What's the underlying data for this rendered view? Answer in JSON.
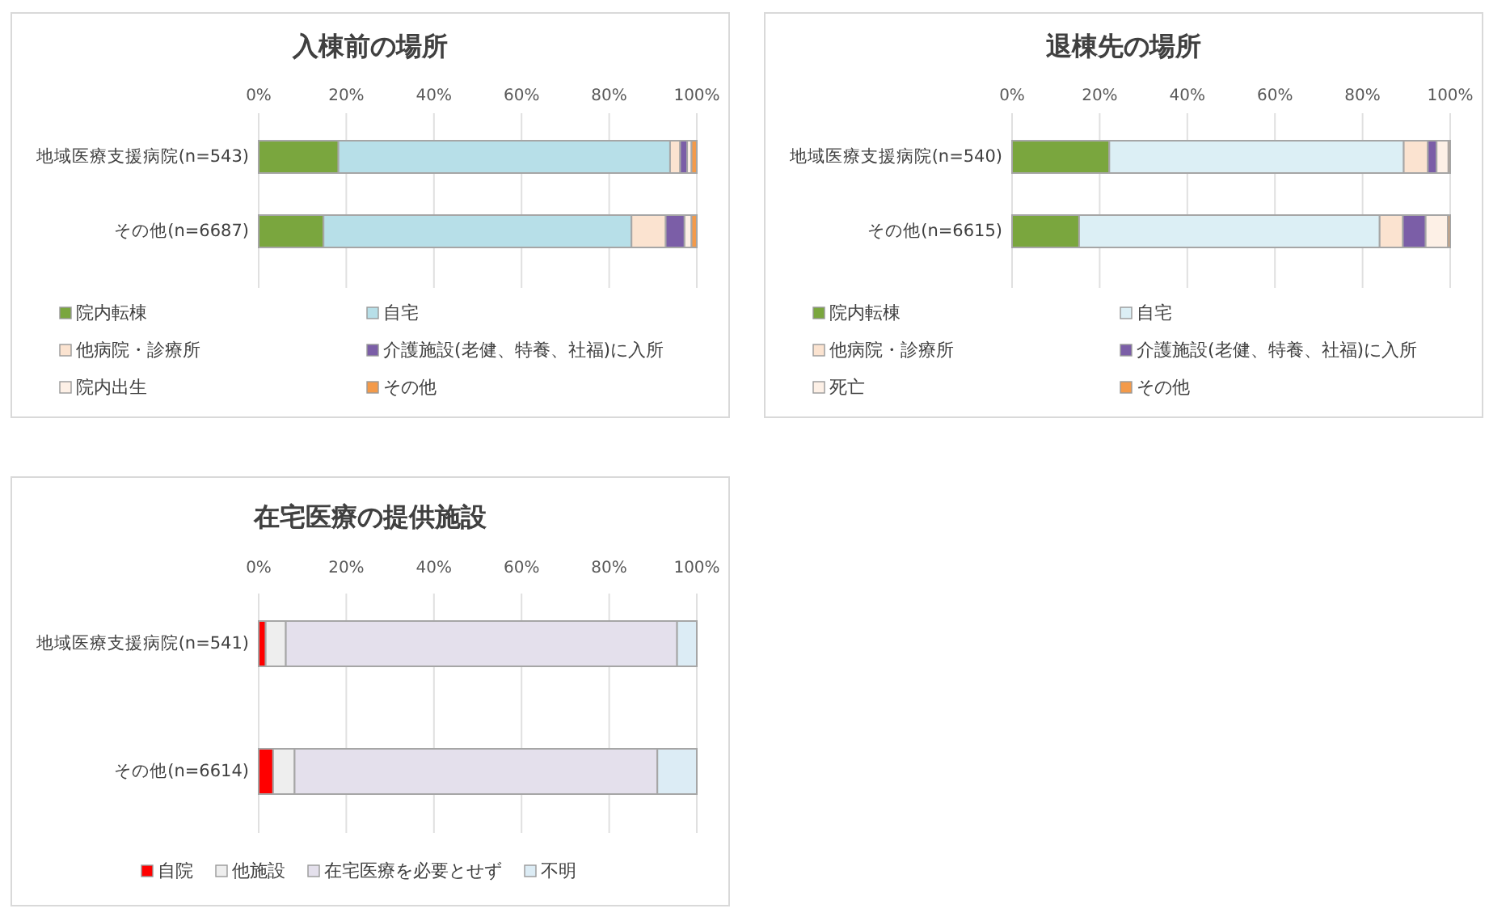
{
  "chart_data": [
    {
      "type": "bar",
      "orientation": "horizontal",
      "stacked": true,
      "title": "入棟前の場所",
      "categories": [
        "地域医療支援病院(n=543)",
        "その他(n=6687)"
      ],
      "xlim": [
        0,
        100
      ],
      "xticks": [
        {
          "value": 0,
          "label": "0%"
        },
        {
          "value": 20,
          "label": "20%"
        },
        {
          "value": 40,
          "label": "40%"
        },
        {
          "value": 60,
          "label": "60%"
        },
        {
          "value": 80,
          "label": "80%"
        },
        {
          "value": 100,
          "label": "100%"
        }
      ],
      "grid": "x",
      "legend": "bottom",
      "series": [
        {
          "name": "院内転棟",
          "color": "#7aa63e",
          "values": [
            18.2,
            14.8
          ]
        },
        {
          "name": "自宅",
          "color": "#b7dfe8",
          "values": [
            75.7,
            70.3
          ]
        },
        {
          "name": "他病院・診療所",
          "color": "#fbe3d0",
          "values": [
            2.3,
            7.8
          ]
        },
        {
          "name": "介護施設(老健、特養、社福)に入所",
          "color": "#7b5ea7",
          "values": [
            1.6,
            4.3
          ]
        },
        {
          "name": "院内出生",
          "color": "#fdf0e6",
          "values": [
            1.0,
            1.6
          ]
        },
        {
          "name": "その他",
          "color": "#f39a4a",
          "values": [
            1.2,
            1.2
          ]
        }
      ]
    },
    {
      "type": "bar",
      "orientation": "horizontal",
      "stacked": true,
      "title": "退棟先の場所",
      "categories": [
        "地域医療支援病院(n=540)",
        "その他(n=6615)"
      ],
      "xlim": [
        0,
        100
      ],
      "xticks": [
        {
          "value": 0,
          "label": "0%"
        },
        {
          "value": 20,
          "label": "20%"
        },
        {
          "value": 40,
          "label": "40%"
        },
        {
          "value": 60,
          "label": "60%"
        },
        {
          "value": 80,
          "label": "80%"
        },
        {
          "value": 100,
          "label": "100%"
        }
      ],
      "grid": "x",
      "legend": "bottom",
      "series": [
        {
          "name": "院内転棟",
          "color": "#7aa63e",
          "values": [
            22.2,
            15.3
          ]
        },
        {
          "name": "自宅",
          "color": "#dceff5",
          "values": [
            67.2,
            68.6
          ]
        },
        {
          "name": "他病院・診療所",
          "color": "#fbe3d0",
          "values": [
            5.5,
            5.3
          ]
        },
        {
          "name": "介護施設(老健、特養、社福)に入所",
          "color": "#7b5ea7",
          "values": [
            2.0,
            5.2
          ]
        },
        {
          "name": "死亡",
          "color": "#fdf0e6",
          "values": [
            2.7,
            5.1
          ]
        },
        {
          "name": "その他",
          "color": "#f39a4a",
          "values": [
            0.4,
            0.5
          ]
        }
      ]
    },
    {
      "type": "bar",
      "orientation": "horizontal",
      "stacked": true,
      "title": "在宅医療の提供施設",
      "categories": [
        "地域医療支援病院(n=541)",
        "その他(n=6614)"
      ],
      "xlim": [
        0,
        100
      ],
      "xticks": [
        {
          "value": 0,
          "label": "0%"
        },
        {
          "value": 20,
          "label": "20%"
        },
        {
          "value": 40,
          "label": "40%"
        },
        {
          "value": 60,
          "label": "60%"
        },
        {
          "value": 80,
          "label": "80%"
        },
        {
          "value": 100,
          "label": "100%"
        }
      ],
      "grid": "x",
      "legend": "bottom",
      "series": [
        {
          "name": "自院",
          "color": "#ff0000",
          "values": [
            1.6,
            3.3
          ]
        },
        {
          "name": "他施設",
          "color": "#eeeeee",
          "values": [
            4.6,
            4.9
          ]
        },
        {
          "name": "在宅医療を必要とせず",
          "color": "#e4e0ec",
          "values": [
            89.3,
            82.8
          ]
        },
        {
          "name": "不明",
          "color": "#dcecf5",
          "values": [
            4.5,
            9.0
          ]
        }
      ]
    }
  ]
}
